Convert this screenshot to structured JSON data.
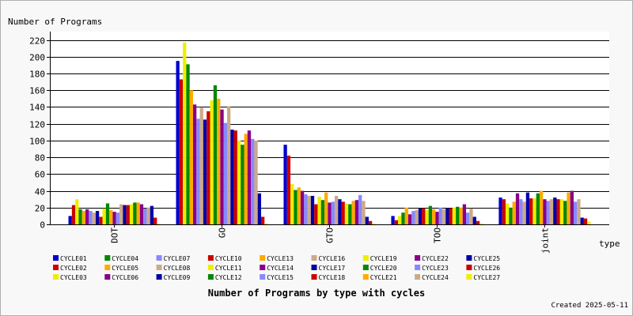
{
  "chart_data": {
    "type": "bar",
    "title": "Number of Programs by type with cycles",
    "ylabel": "Number of Programs",
    "xlabel": "type",
    "credit": "Created 2025-05-11",
    "ylim": [
      0,
      230
    ],
    "yticks": [
      0,
      20,
      40,
      60,
      80,
      100,
      120,
      140,
      160,
      180,
      200,
      220
    ],
    "grid": true,
    "legend_position": "bottom",
    "categories": [
      "DOT",
      "GO",
      "GTO",
      "TOO",
      "joint"
    ],
    "series": [
      {
        "name": "CYCLE01",
        "color": "#0000cc",
        "values": [
          10,
          195,
          95,
          10,
          32
        ]
      },
      {
        "name": "CYCLE02",
        "color": "#cc0000",
        "values": [
          23,
          173,
          82,
          5,
          30
        ]
      },
      {
        "name": "CYCLE03",
        "color": "#eeee00",
        "values": [
          30,
          217,
          48,
          10,
          25
        ]
      },
      {
        "name": "CYCLE04",
        "color": "#008800",
        "values": [
          18,
          191,
          41,
          14,
          20
        ]
      },
      {
        "name": "CYCLE05",
        "color": "#ffaa00",
        "values": [
          16,
          160,
          44,
          20,
          27
        ]
      },
      {
        "name": "CYCLE06",
        "color": "#880088",
        "values": [
          18,
          143,
          40,
          12,
          37
        ]
      },
      {
        "name": "CYCLE07",
        "color": "#8888ff",
        "values": [
          16,
          126,
          36,
          16,
          30
        ]
      },
      {
        "name": "CYCLE08",
        "color": "#ccaa88",
        "values": [
          14,
          139,
          34,
          17,
          27
        ]
      },
      {
        "name": "CYCLE09",
        "color": "#0000aa",
        "values": [
          16,
          125,
          34,
          19,
          38
        ]
      },
      {
        "name": "CYCLE10",
        "color": "#cc0000",
        "values": [
          9,
          135,
          24,
          19,
          31
        ]
      },
      {
        "name": "CYCLE11",
        "color": "#eeee00",
        "values": [
          19,
          148,
          33,
          17,
          31
        ]
      },
      {
        "name": "CYCLE12",
        "color": "#008800",
        "values": [
          25,
          166,
          29,
          22,
          37
        ]
      },
      {
        "name": "CYCLE13",
        "color": "#ffaa00",
        "values": [
          17,
          150,
          38,
          18,
          40
        ]
      },
      {
        "name": "CYCLE14",
        "color": "#880088",
        "values": [
          15,
          137,
          26,
          15,
          30
        ]
      },
      {
        "name": "CYCLE15",
        "color": "#8888ff",
        "values": [
          14,
          121,
          27,
          20,
          28
        ]
      },
      {
        "name": "CYCLE16",
        "color": "#ccaa88",
        "values": [
          24,
          141,
          34,
          18,
          30
        ]
      },
      {
        "name": "CYCLE17",
        "color": "#0000aa",
        "values": [
          23,
          113,
          30,
          19,
          32
        ]
      },
      {
        "name": "CYCLE18",
        "color": "#cc0000",
        "values": [
          23,
          112,
          27,
          19,
          30
        ]
      },
      {
        "name": "CYCLE19",
        "color": "#eeee00",
        "values": [
          24,
          100,
          25,
          20,
          30
        ]
      },
      {
        "name": "CYCLE20",
        "color": "#008800",
        "values": [
          26,
          95,
          24,
          21,
          28
        ]
      },
      {
        "name": "CYCLE21",
        "color": "#ffaa00",
        "values": [
          26,
          108,
          28,
          20,
          38
        ]
      },
      {
        "name": "CYCLE22",
        "color": "#880088",
        "values": [
          24,
          112,
          29,
          24,
          40
        ]
      },
      {
        "name": "CYCLE23",
        "color": "#8888ff",
        "values": [
          19,
          102,
          35,
          14,
          27
        ]
      },
      {
        "name": "CYCLE24",
        "color": "#ccaa88",
        "values": [
          20,
          100,
          28,
          19,
          30
        ]
      },
      {
        "name": "CYCLE25",
        "color": "#0000aa",
        "values": [
          22,
          37,
          9,
          9,
          8
        ]
      },
      {
        "name": "CYCLE26",
        "color": "#cc0000",
        "values": [
          8,
          9,
          4,
          4,
          7
        ]
      },
      {
        "name": "CYCLE27",
        "color": "#eeee00",
        "values": [
          1,
          1,
          1,
          1,
          3
        ]
      }
    ]
  }
}
